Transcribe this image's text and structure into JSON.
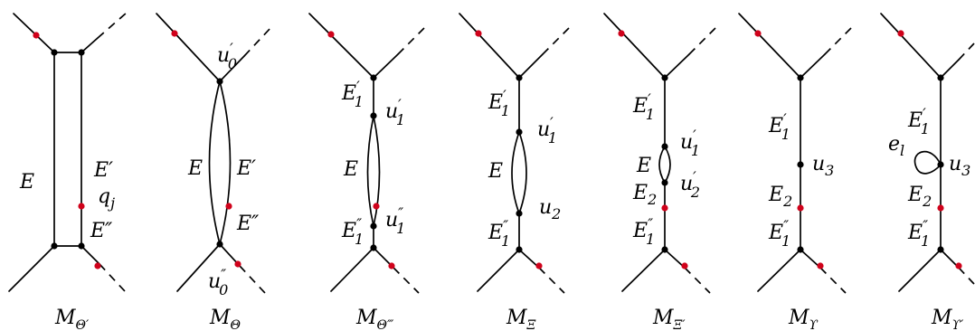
{
  "panels": [
    {
      "caption": "M",
      "caption_sub": "Θ′",
      "labels": {
        "E_left": "E",
        "E_prime": "E′",
        "q": "q",
        "q_sub": "j",
        "E_dprime": "E″"
      }
    },
    {
      "caption": "M",
      "caption_sub": "Θ",
      "labels": {
        "u": "u",
        "u_top_mark": "′",
        "u_top_sub": "0",
        "E_left": "E",
        "E_prime": "E′",
        "E_dprime": "E″",
        "u_bot_mark": "″",
        "u_bot_sub": "0"
      }
    },
    {
      "caption": "M",
      "caption_sub": "Θ‴",
      "labels": {
        "E": "E",
        "u": "u",
        "prime": "′",
        "dprime": "″",
        "one": "1"
      }
    },
    {
      "caption": "M",
      "caption_sub": "Ξ",
      "labels": {
        "E": "E",
        "u": "u",
        "prime": "′",
        "dprime": "″",
        "one": "1",
        "two": "2"
      }
    },
    {
      "caption": "M",
      "caption_sub": "Ξ′",
      "labels": {
        "E": "E",
        "u": "u",
        "prime": "′",
        "dprime": "″",
        "one": "1",
        "two": "2"
      }
    },
    {
      "caption": "M",
      "caption_sub": "ϒ",
      "labels": {
        "E": "E",
        "u": "u",
        "prime": "′",
        "dprime": "″",
        "one": "1",
        "two": "2",
        "three": "3"
      }
    },
    {
      "caption": "M",
      "caption_sub": "ϒ′",
      "labels": {
        "E": "E",
        "e": "e",
        "e_sub": "l",
        "u": "u",
        "prime": "′",
        "dprime": "″",
        "one": "1",
        "two": "2",
        "three": "3"
      }
    }
  ]
}
